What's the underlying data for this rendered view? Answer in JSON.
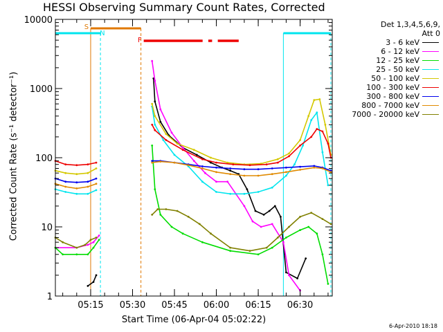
{
  "title": "HESSI Observing Summary Count Rates, Corrected",
  "x_axis_label": "Start Time (06-Apr-04 05:02:22)",
  "y_axis_label": "Corrected Count Rate (s⁻¹ detector⁻¹)",
  "legend": {
    "head_line1": "Det 1,3,4,5,6,9,",
    "head_line2": "Att 0",
    "entries": [
      {
        "label": "3 - 6 keV",
        "color": "#000000"
      },
      {
        "label": "6 - 12 keV",
        "color": "#ff00ff"
      },
      {
        "label": "12 - 25 keV",
        "color": "#00dd00"
      },
      {
        "label": "25 - 50 keV",
        "color": "#00e5ee"
      },
      {
        "label": "50 - 100 keV",
        "color": "#d4c800"
      },
      {
        "label": "100 - 300 keV",
        "color": "#ee0000"
      },
      {
        "label": "300 - 800 keV",
        "color": "#0000ee"
      },
      {
        "label": "800 - 7000 keV",
        "color": "#e08a00"
      },
      {
        "label": "7000 - 20000 keV",
        "color": "#808000"
      }
    ]
  },
  "timestamp": "6-Apr-2010 18:18",
  "colors": {
    "axis": "#000000",
    "night": "#00e5ee",
    "saa": "#e07800",
    "flare": "#ee0000"
  },
  "chart_data": {
    "type": "line",
    "title": "HESSI Observing Summary Count Rates, Corrected",
    "xlabel": "Start Time (06-Apr-04 05:02:22)",
    "ylabel": "Corrected Count Rate (s⁻¹ detector⁻¹)",
    "x_unit": "time (UT, 06-Apr-04)",
    "y_scale": "log",
    "xlim": [
      "05:02:22",
      "06:41:30"
    ],
    "ylim": [
      1,
      10000
    ],
    "x_ticks": [
      "05:15",
      "05:30",
      "05:45",
      "06:00",
      "06:15",
      "06:30"
    ],
    "y_ticks": [
      "1",
      "10",
      "100",
      "1000",
      "10000"
    ],
    "grid": false,
    "legend_position": "right",
    "data_gaps": [
      [
        "05:18:30",
        "05:37:00"
      ]
    ],
    "annotations": [
      {
        "text": "S",
        "x": "05:15:00",
        "color": "#e07800",
        "meaning": "SAA interval",
        "extent": [
          "05:15:00",
          "05:33:00"
        ]
      },
      {
        "text": "N",
        "x": "05:17:30",
        "color": "#00e5ee",
        "meaning": "night interval",
        "extent": [
          "05:02:22",
          "05:18:30"
        ]
      },
      {
        "text": "F",
        "x": "05:34:00",
        "color": "#ee0000",
        "meaning": "flare interval",
        "extent": [
          "05:34:00",
          "06:08:00"
        ]
      },
      {
        "text": "",
        "color": "#00e5ee",
        "meaning": "night interval",
        "extent": [
          "06:24:00",
          "06:41:00"
        ]
      }
    ],
    "series": [
      {
        "name": "3 - 6 keV",
        "color": "#000000",
        "x": [
          "05:02:22",
          "05:08:00",
          "05:14:00",
          "05:16:00",
          "05:17:00",
          "05:18:30",
          "05:37:30",
          "05:38:00",
          "05:40:00",
          "05:43:00",
          "05:48:00",
          "05:53:00",
          "05:58:00",
          "06:02:00",
          "06:05:00",
          "06:08:00",
          "06:11:00",
          "06:14:00",
          "06:17:00",
          "06:19:00",
          "06:21:00",
          "06:23:00",
          "06:25:00",
          "06:29:00",
          "06:32:00"
        ],
        "y": [
          null,
          null,
          1.4,
          1.6,
          2.0,
          null,
          1400,
          650,
          330,
          210,
          140,
          110,
          85,
          72,
          65,
          58,
          35,
          17,
          15,
          17,
          20,
          14,
          2.2,
          1.8,
          3.5
        ]
      },
      {
        "name": "6 - 12 keV",
        "color": "#ff00ff",
        "x": [
          "05:02:22",
          "05:10:00",
          "05:14:00",
          "05:16:00",
          "05:18:00",
          "05:18:30",
          "05:37:00",
          "05:38:00",
          "05:40:00",
          "05:44:00",
          "05:48:00",
          "05:52:00",
          "05:56:00",
          "06:00:00",
          "06:04:00",
          "06:07:00",
          "06:10:00",
          "06:13:00",
          "06:16:00",
          "06:20:00",
          "06:24:00",
          "06:26:00",
          "06:30:00"
        ],
        "y": [
          5,
          5,
          5.5,
          6,
          7.5,
          null,
          2500,
          1300,
          500,
          230,
          140,
          90,
          60,
          45,
          45,
          30,
          20,
          12,
          10,
          11,
          6,
          2,
          1.2
        ]
      },
      {
        "name": "12 - 25 keV",
        "color": "#00dd00",
        "x": [
          "05:02:22",
          "05:05:00",
          "05:10:00",
          "05:14:00",
          "05:16:00",
          "05:18:00",
          "05:18:30",
          "05:37:00",
          "05:38:00",
          "05:40:00",
          "05:44:00",
          "05:48:00",
          "05:55:00",
          "06:05:00",
          "06:15:00",
          "06:20:00",
          "06:25:00",
          "06:30:00",
          "06:33:00",
          "06:36:00",
          "06:38:00",
          "06:40:00"
        ],
        "y": [
          5,
          4,
          4,
          4,
          5,
          6.5,
          null,
          150,
          35,
          15,
          10,
          8,
          6,
          4.5,
          4,
          5,
          7,
          9,
          10,
          8,
          4,
          1.5
        ]
      },
      {
        "name": "25 - 50 keV",
        "color": "#00e5ee",
        "x": [
          "05:02:22",
          "05:06:00",
          "05:10:00",
          "05:14:00",
          "05:17:00",
          "05:18:30",
          "05:37:00",
          "05:38:00",
          "05:41:00",
          "05:45:00",
          "05:50:00",
          "05:55:00",
          "06:00:00",
          "06:05:00",
          "06:10:00",
          "06:15:00",
          "06:20:00",
          "06:25:00",
          "06:28:00",
          "06:31:00",
          "06:34:00",
          "06:36:00",
          "06:38:00",
          "06:40:00"
        ],
        "y": [
          35,
          32,
          30,
          30,
          34,
          null,
          550,
          300,
          180,
          110,
          75,
          45,
          32,
          30,
          30,
          32,
          37,
          55,
          80,
          150,
          350,
          450,
          120,
          40
        ]
      },
      {
        "name": "50 - 100 keV",
        "color": "#d4c800",
        "x": [
          "05:02:22",
          "05:06:00",
          "05:10:00",
          "05:14:00",
          "05:17:00",
          "05:18:30",
          "05:37:00",
          "05:38:00",
          "05:42:00",
          "05:46:00",
          "05:52:00",
          "05:58:00",
          "06:04:00",
          "06:10:00",
          "06:16:00",
          "06:22:00",
          "06:26:00",
          "06:30:00",
          "06:33:00",
          "06:35:00",
          "06:37:00",
          "06:39:00",
          "06:41:00"
        ],
        "y": [
          65,
          60,
          58,
          60,
          70,
          null,
          600,
          400,
          220,
          160,
          130,
          100,
          85,
          80,
          82,
          95,
          115,
          180,
          400,
          680,
          700,
          300,
          110
        ]
      },
      {
        "name": "100 - 300 keV",
        "color": "#ee0000",
        "x": [
          "05:02:22",
          "05:06:00",
          "05:10:00",
          "05:14:00",
          "05:17:00",
          "05:18:30",
          "05:37:00",
          "05:38:00",
          "05:42:00",
          "05:48:00",
          "05:55:00",
          "06:00:00",
          "06:06:00",
          "06:12:00",
          "06:18:00",
          "06:22:00",
          "06:26:00",
          "06:30:00",
          "06:34:00",
          "06:36:00",
          "06:38:00",
          "06:40:00",
          "06:41:00"
        ],
        "y": [
          90,
          80,
          78,
          80,
          85,
          null,
          300,
          250,
          180,
          130,
          95,
          85,
          80,
          78,
          80,
          85,
          105,
          150,
          200,
          260,
          240,
          160,
          100
        ]
      },
      {
        "name": "300 - 800 keV",
        "color": "#0000ee",
        "x": [
          "05:02:22",
          "05:06:00",
          "05:10:00",
          "05:14:00",
          "05:17:00",
          "05:18:30",
          "05:37:00",
          "05:40:00",
          "05:45:00",
          "05:50:00",
          "05:55:00",
          "06:00:00",
          "06:05:00",
          "06:10:00",
          "06:15:00",
          "06:20:00",
          "06:25:00",
          "06:30:00",
          "06:35:00",
          "06:38:00",
          "06:41:00"
        ],
        "y": [
          50,
          45,
          44,
          45,
          50,
          null,
          90,
          90,
          85,
          80,
          75,
          72,
          70,
          68,
          68,
          70,
          72,
          74,
          76,
          72,
          65
        ]
      },
      {
        "name": "800 - 7000 keV",
        "color": "#e08a00",
        "x": [
          "05:02:22",
          "05:06:00",
          "05:10:00",
          "05:14:00",
          "05:17:00",
          "05:18:30",
          "05:37:00",
          "05:40:00",
          "05:45:00",
          "05:50:00",
          "05:55:00",
          "06:00:00",
          "06:05:00",
          "06:10:00",
          "06:15:00",
          "06:20:00",
          "06:25:00",
          "06:30:00",
          "06:35:00",
          "06:38:00",
          "06:41:00"
        ],
        "y": [
          42,
          38,
          36,
          38,
          42,
          null,
          85,
          88,
          85,
          78,
          70,
          62,
          58,
          55,
          55,
          58,
          62,
          67,
          72,
          70,
          62
        ]
      },
      {
        "name": "7000 - 20000 keV",
        "color": "#808000",
        "x": [
          "05:02:22",
          "05:05:00",
          "05:10:00",
          "05:13:00",
          "05:15:00",
          "05:17:00",
          "05:18:30",
          "05:37:00",
          "05:39:00",
          "05:42:00",
          "05:46:00",
          "05:50:00",
          "05:54:00",
          "05:58:00",
          "06:05:00",
          "06:12:00",
          "06:18:00",
          "06:22:00",
          "06:26:00",
          "06:30:00",
          "06:34:00",
          "06:38:00",
          "06:41:00"
        ],
        "y": [
          7,
          6,
          5,
          5.5,
          6.5,
          7,
          null,
          15,
          18,
          18,
          17,
          14,
          11,
          8,
          5,
          4.5,
          5,
          7,
          10,
          14,
          16,
          13,
          11
        ]
      }
    ]
  }
}
